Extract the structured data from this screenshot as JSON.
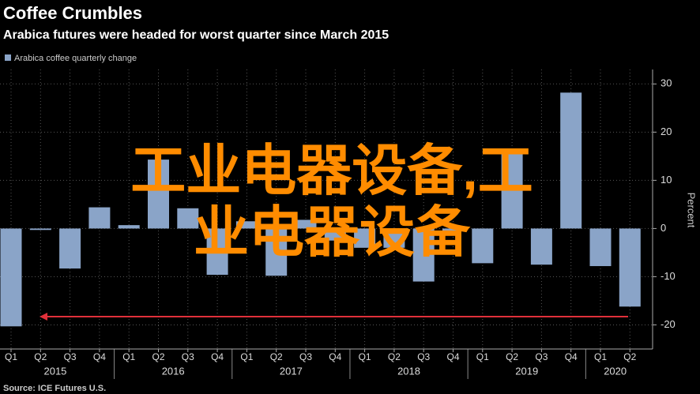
{
  "chart_data": {
    "type": "bar",
    "title": "Coffee Crumbles",
    "subtitle": "Arabica futures were headed for worst quarter since March 2015",
    "series": [
      {
        "name": "Arabica coffee quarterly change",
        "color": "#8aa4c8",
        "values": [
          -20.3,
          -0.3,
          -8.3,
          4.4,
          0.7,
          14.3,
          4.2,
          -9.6,
          1.5,
          -9.8,
          1.8,
          -2.5,
          -4,
          -4,
          -11,
          -0.5,
          -7.2,
          15.8,
          -7.5,
          28.2,
          -7.8,
          -16.2
        ]
      }
    ],
    "categories": [
      "Q1",
      "Q2",
      "Q3",
      "Q4",
      "Q1",
      "Q2",
      "Q3",
      "Q4",
      "Q1",
      "Q2",
      "Q3",
      "Q4",
      "Q1",
      "Q2",
      "Q3",
      "Q4",
      "Q1",
      "Q2",
      "Q3",
      "Q4",
      "Q1",
      "Q2"
    ],
    "year_labels": [
      "2015",
      "2016",
      "2017",
      "2018",
      "2019",
      "2020"
    ],
    "ylabel": "Percent",
    "ylim": [
      -25,
      33
    ],
    "yticks": [
      -20,
      -10,
      0,
      10,
      20,
      30
    ],
    "grid": true,
    "source": "Source: ICE Futures U.S.",
    "watermark": "工业电器设备,工业电器设备"
  }
}
